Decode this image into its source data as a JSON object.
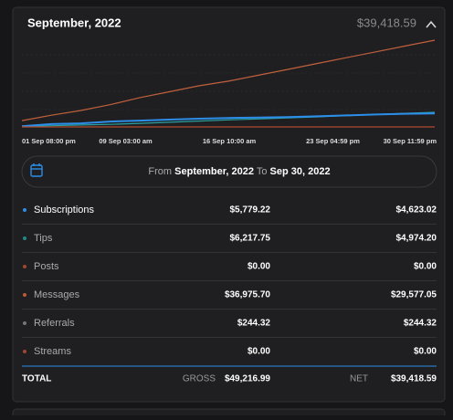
{
  "header": {
    "title": "September, 2022",
    "amount": "$39,418.59"
  },
  "chart": {
    "type": "line",
    "x_labels": [
      "01 Sep 08:00 pm",
      "09 Sep 03:00 am",
      "16 Sep 10:00 am",
      "23 Sep 04:59 pm",
      "30 Sep 11:59 pm"
    ],
    "series": [
      {
        "color": "#c0603c",
        "values": [
          2700,
          5000,
          7000,
          9500,
          12500,
          15000,
          17500,
          19500,
          22000,
          24500,
          27000,
          29500,
          32000,
          34500,
          36975
        ]
      },
      {
        "color": "#2aa0a0",
        "values": [
          200,
          500,
          800,
          1100,
          1500,
          2000,
          2500,
          3000,
          3400,
          3800,
          4300,
          4800,
          5300,
          5800,
          6217
        ]
      },
      {
        "color": "#2c8ee8",
        "values": [
          300,
          1200,
          1500,
          2300,
          2700,
          3100,
          3500,
          3800,
          4000,
          4200,
          4500,
          4900,
          5300,
          5600,
          5779
        ]
      },
      {
        "color": "#b04a30",
        "values": [
          0,
          0,
          0,
          0,
          0,
          0,
          0,
          0,
          0,
          0,
          0,
          0,
          0,
          0,
          0
        ]
      }
    ]
  },
  "range": {
    "from_label": "From",
    "from": "September, 2022",
    "to_label": "To",
    "to": "Sep 30, 2022"
  },
  "rows": [
    {
      "name": "Subscriptions",
      "gross": "$5,779.22",
      "net": "$4,623.02",
      "color": "#2c8ee8"
    },
    {
      "name": "Tips",
      "gross": "$6,217.75",
      "net": "$4,974.20",
      "color": "#1f8a8a"
    },
    {
      "name": "Posts",
      "gross": "$0.00",
      "net": "$0.00",
      "color": "#a0472f"
    },
    {
      "name": "Messages",
      "gross": "$36,975.70",
      "net": "$29,577.05",
      "color": "#c0583a"
    },
    {
      "name": "Referrals",
      "gross": "$244.32",
      "net": "$244.32",
      "color": "#777777"
    },
    {
      "name": "Streams",
      "gross": "$0.00",
      "net": "$0.00",
      "color": "#a0472f"
    }
  ],
  "total": {
    "label": "TOTAL",
    "gross_label": "GROSS",
    "gross": "$49,216.99",
    "net_label": "NET",
    "net": "$39,418.59"
  }
}
